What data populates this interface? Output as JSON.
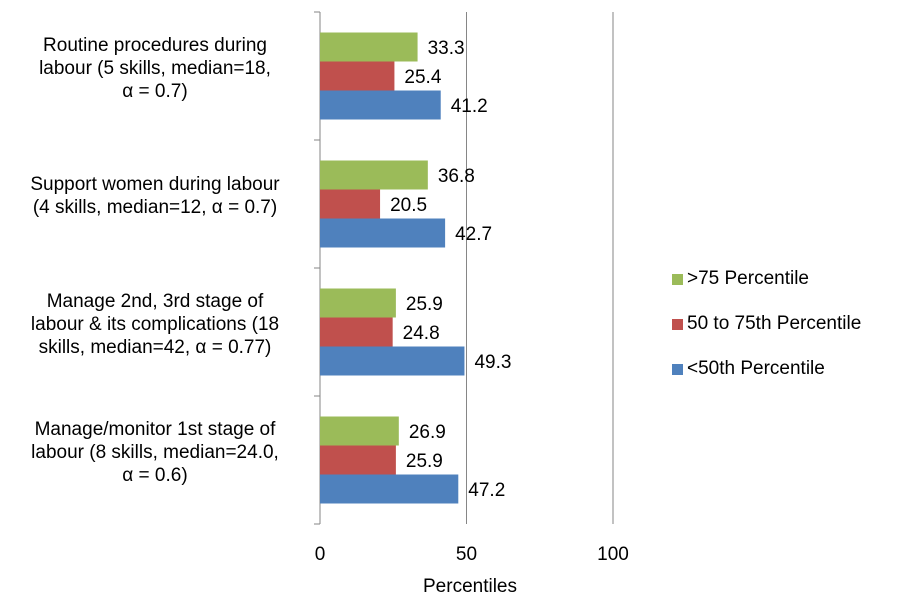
{
  "chart_data": {
    "type": "bar",
    "orientation": "horizontal",
    "categories": [
      "Routine procedures during labour (5 skills, median=18, α = 0.7)",
      "Support women during labour (4 skills, median=12, α = 0.7)",
      "Manage 2nd, 3rd stage of labour & its complications (18 skills, median=42, α = 0.77)",
      "Manage/monitor 1st stage of labour (8 skills, median=24.0, α = 0.6)"
    ],
    "category_lines": [
      [
        "Routine procedures during",
        "labour (5 skills, median=18,",
        "α = 0.7)"
      ],
      [
        "Support women during labour",
        "(4 skills, median=12, α = 0.7)"
      ],
      [
        "Manage 2nd, 3rd stage of",
        "labour & its complications (18",
        "skills, median=42, α = 0.77)"
      ],
      [
        "Manage/monitor 1st stage of",
        "labour (8 skills, median=24.0,",
        "α = 0.6)"
      ]
    ],
    "series": [
      {
        "name": ">75 Percentile",
        "color": "#9BBB59",
        "values": [
          33.3,
          36.8,
          25.9,
          26.9
        ]
      },
      {
        "name": "50 to 75th Percentile",
        "color": "#C0504D",
        "values": [
          25.4,
          20.5,
          24.8,
          25.9
        ]
      },
      {
        "name": "<50th Percentile",
        "color": "#4F81BD",
        "values": [
          41.2,
          42.7,
          49.3,
          47.2
        ]
      }
    ],
    "xlabel": "Percentiles",
    "xlim": [
      0,
      100
    ],
    "xticks": [
      0,
      50,
      100
    ],
    "grid": true,
    "legend_position": "right"
  }
}
